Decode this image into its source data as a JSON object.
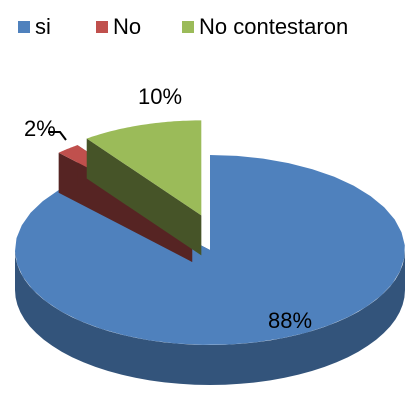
{
  "chart_data": {
    "type": "pie3d",
    "categories": [
      "si",
      "No",
      "No contestaron"
    ],
    "values": [
      88,
      2,
      10
    ],
    "value_labels": [
      "88%",
      "2%",
      "10%"
    ],
    "colors": [
      "#4f81bd",
      "#c0504d",
      "#9bbb59"
    ],
    "legend": "top"
  }
}
